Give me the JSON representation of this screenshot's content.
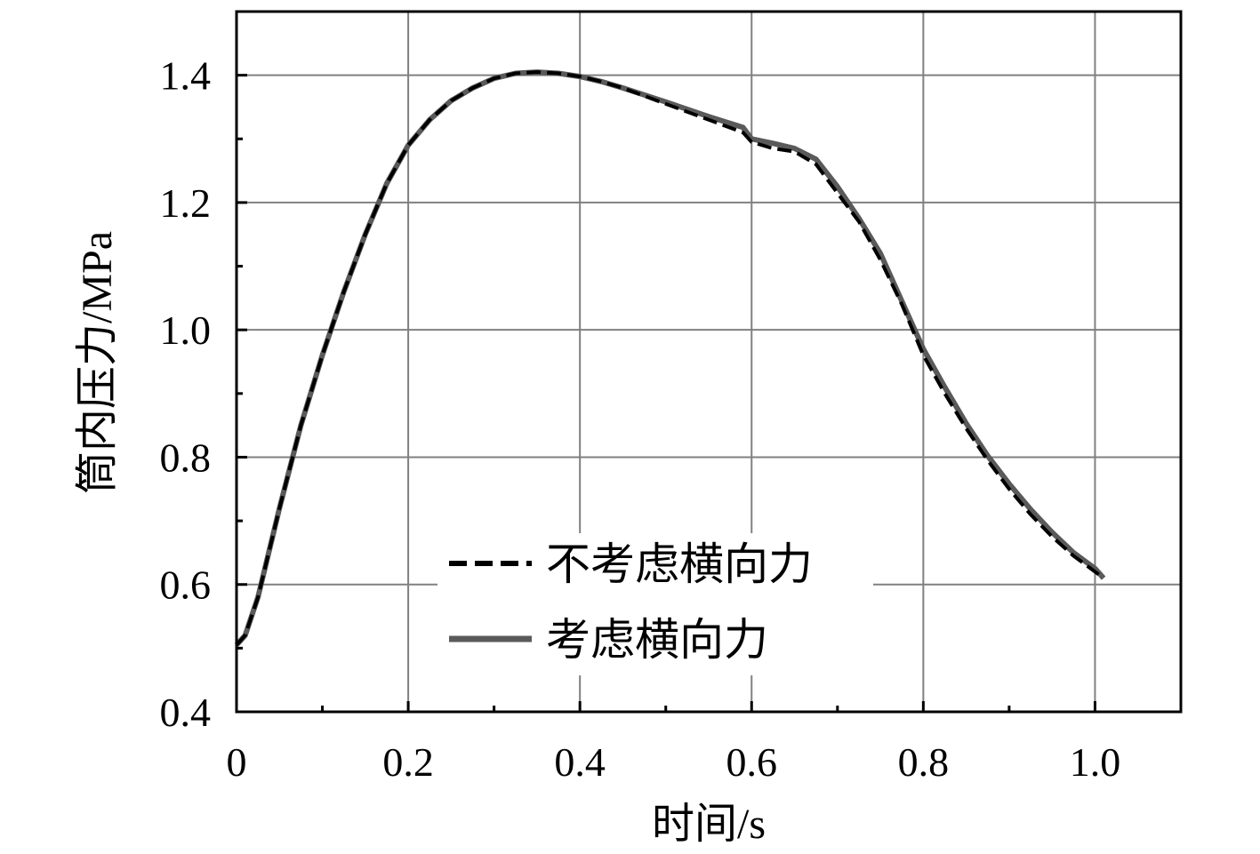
{
  "chart_data": {
    "type": "line",
    "xlabel": "时间/s",
    "ylabel": "筒内压力/MPa",
    "xlim": [
      0,
      1.1
    ],
    "ylim": [
      0.4,
      1.5
    ],
    "x_ticks": [
      0,
      0.2,
      0.4,
      0.6,
      0.8,
      1.0
    ],
    "x_tick_labels": [
      "0",
      "0.2",
      "0.4",
      "0.6",
      "0.8",
      "1.0"
    ],
    "y_ticks": [
      0.4,
      0.6,
      0.8,
      1.0,
      1.2,
      1.4
    ],
    "y_tick_labels": [
      "0.4",
      "0.6",
      "0.8",
      "1.0",
      "1.2",
      "1.4"
    ],
    "grid": true,
    "legend_position": "lower-center",
    "series": [
      {
        "name": "不考虑横向力",
        "style": "dashed",
        "color": "#000000",
        "x": [
          0,
          0.01,
          0.025,
          0.05,
          0.075,
          0.1,
          0.125,
          0.15,
          0.175,
          0.2,
          0.225,
          0.25,
          0.275,
          0.3,
          0.325,
          0.35,
          0.375,
          0.4,
          0.425,
          0.45,
          0.5,
          0.55,
          0.59,
          0.6,
          0.625,
          0.65,
          0.675,
          0.7,
          0.725,
          0.75,
          0.775,
          0.8,
          0.825,
          0.85,
          0.875,
          0.9,
          0.925,
          0.95,
          0.975,
          1.0,
          1.01
        ],
        "y": [
          0.505,
          0.52,
          0.58,
          0.72,
          0.85,
          0.96,
          1.06,
          1.15,
          1.23,
          1.29,
          1.33,
          1.36,
          1.38,
          1.395,
          1.403,
          1.405,
          1.403,
          1.398,
          1.39,
          1.38,
          1.355,
          1.33,
          1.31,
          1.295,
          1.285,
          1.28,
          1.26,
          1.215,
          1.17,
          1.11,
          1.04,
          0.96,
          0.9,
          0.845,
          0.795,
          0.75,
          0.71,
          0.675,
          0.645,
          0.62,
          0.61
        ]
      },
      {
        "name": "考虑横向力",
        "style": "solid",
        "color": "#5a5a5a",
        "x": [
          0,
          0.01,
          0.025,
          0.05,
          0.075,
          0.1,
          0.125,
          0.15,
          0.175,
          0.2,
          0.225,
          0.25,
          0.275,
          0.3,
          0.325,
          0.35,
          0.375,
          0.4,
          0.425,
          0.45,
          0.5,
          0.55,
          0.59,
          0.6,
          0.625,
          0.65,
          0.675,
          0.7,
          0.725,
          0.75,
          0.775,
          0.8,
          0.825,
          0.85,
          0.875,
          0.9,
          0.925,
          0.95,
          0.975,
          1.0,
          1.01
        ],
        "y": [
          0.505,
          0.52,
          0.58,
          0.72,
          0.85,
          0.96,
          1.06,
          1.15,
          1.23,
          1.29,
          1.33,
          1.36,
          1.38,
          1.395,
          1.403,
          1.405,
          1.403,
          1.398,
          1.39,
          1.38,
          1.358,
          1.335,
          1.318,
          1.3,
          1.293,
          1.285,
          1.268,
          1.225,
          1.175,
          1.12,
          1.045,
          0.97,
          0.91,
          0.853,
          0.802,
          0.758,
          0.718,
          0.682,
          0.65,
          0.625,
          0.61
        ]
      }
    ]
  }
}
